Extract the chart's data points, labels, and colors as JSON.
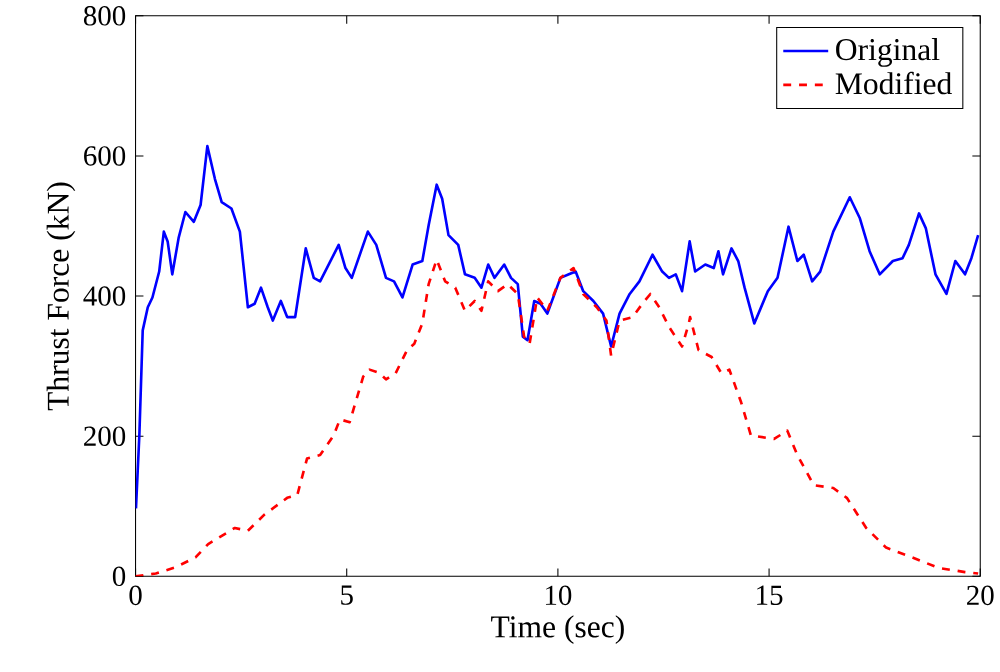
{
  "chart_data": {
    "type": "line",
    "xlabel": "Time (sec)",
    "ylabel": "Thrust Force (kN)",
    "xlim": [
      0,
      20
    ],
    "ylim": [
      0,
      800
    ],
    "xticks": [
      0,
      5,
      10,
      15,
      20
    ],
    "yticks": [
      0,
      200,
      400,
      600,
      800
    ],
    "grid": false,
    "legend": "top right",
    "series": [
      {
        "name": "Original",
        "color": "#0000ff",
        "line_style": "solid",
        "x": [
          0.01,
          0.09,
          0.17,
          0.29,
          0.4,
          0.56,
          0.67,
          0.76,
          0.87,
          1.02,
          1.18,
          1.38,
          1.54,
          1.7,
          1.88,
          2.04,
          2.27,
          2.47,
          2.66,
          2.82,
          2.97,
          3.13,
          3.25,
          3.44,
          3.59,
          3.78,
          4.03,
          4.22,
          4.37,
          4.53,
          4.81,
          4.97,
          5.12,
          5.5,
          5.7,
          5.93,
          6.12,
          6.32,
          6.56,
          6.79,
          6.94,
          7.13,
          7.26,
          7.41,
          7.64,
          7.8,
          8.03,
          8.19,
          8.35,
          8.5,
          8.73,
          8.89,
          9.05,
          9.17,
          9.28,
          9.44,
          9.59,
          9.75,
          10.06,
          10.26,
          10.42,
          10.6,
          10.84,
          11.07,
          11.26,
          11.46,
          11.7,
          11.93,
          12.24,
          12.47,
          12.63,
          12.79,
          12.94,
          13.12,
          13.25,
          13.49,
          13.69,
          13.8,
          13.91,
          14.11,
          14.27,
          14.42,
          14.65,
          14.97,
          15.2,
          15.46,
          15.67,
          15.82,
          16.02,
          16.21,
          16.52,
          16.91,
          17.15,
          17.38,
          17.62,
          17.93,
          18.16,
          18.31,
          18.55,
          18.71,
          18.94,
          19.2,
          19.41,
          19.64,
          19.79,
          19.95
        ],
        "values": [
          97,
          201,
          351,
          384,
          398,
          435,
          492,
          478,
          431,
          483,
          520,
          506,
          530,
          614,
          567,
          534,
          525,
          492,
          384,
          389,
          412,
          384,
          365,
          393,
          370,
          370,
          468,
          426,
          421,
          440,
          473,
          440,
          426,
          492,
          473,
          426,
          421,
          398,
          445,
          450,
          501,
          559,
          539,
          487,
          473,
          431,
          426,
          412,
          445,
          426,
          445,
          426,
          417,
          342,
          337,
          393,
          389,
          375,
          426,
          431,
          435,
          407,
          393,
          375,
          328,
          375,
          403,
          421,
          459,
          435,
          426,
          431,
          407,
          478,
          435,
          445,
          440,
          464,
          431,
          468,
          450,
          412,
          361,
          407,
          426,
          499,
          450,
          459,
          421,
          435,
          492,
          541,
          511,
          464,
          431,
          450,
          454,
          473,
          518,
          497,
          431,
          403,
          450,
          431,
          454,
          487
        ]
      },
      {
        "name": "Modified",
        "color": "#ff0000",
        "line_style": "dashed",
        "x": [
          0,
          0.48,
          0.95,
          1.42,
          1.72,
          2.35,
          2.66,
          3.05,
          3.59,
          3.83,
          4.06,
          4.37,
          4.69,
          4.84,
          5.07,
          5.39,
          5.54,
          5.78,
          5.93,
          6.16,
          6.43,
          6.6,
          6.79,
          6.94,
          7.13,
          7.33,
          7.57,
          7.8,
          8.03,
          8.19,
          8.35,
          8.58,
          8.81,
          9.05,
          9.2,
          9.33,
          9.51,
          9.75,
          10.06,
          10.37,
          10.6,
          10.92,
          11.15,
          11.26,
          11.46,
          11.77,
          12.0,
          12.19,
          12.4,
          12.63,
          12.94,
          13.1,
          13.13,
          13.33,
          13.64,
          13.87,
          14.06,
          14.34,
          14.57,
          15.12,
          15.43,
          15.67,
          16.06,
          16.52,
          16.84,
          17.3,
          17.77,
          18.39,
          19.01,
          19.64,
          19.95
        ],
        "values": [
          0,
          4,
          13,
          27,
          46,
          69,
          65,
          88,
          112,
          116,
          168,
          173,
          201,
          224,
          220,
          285,
          295,
          290,
          281,
          290,
          323,
          332,
          361,
          417,
          452,
          421,
          412,
          379,
          393,
          379,
          421,
          407,
          417,
          403,
          342,
          332,
          398,
          379,
          426,
          440,
          403,
          384,
          365,
          315,
          365,
          370,
          389,
          403,
          384,
          356,
          328,
          361,
          370,
          323,
          313,
          290,
          295,
          248,
          201,
          196,
          208,
          173,
          130,
          126,
          112,
          69,
          41,
          27,
          12,
          6,
          4
        ]
      }
    ]
  }
}
